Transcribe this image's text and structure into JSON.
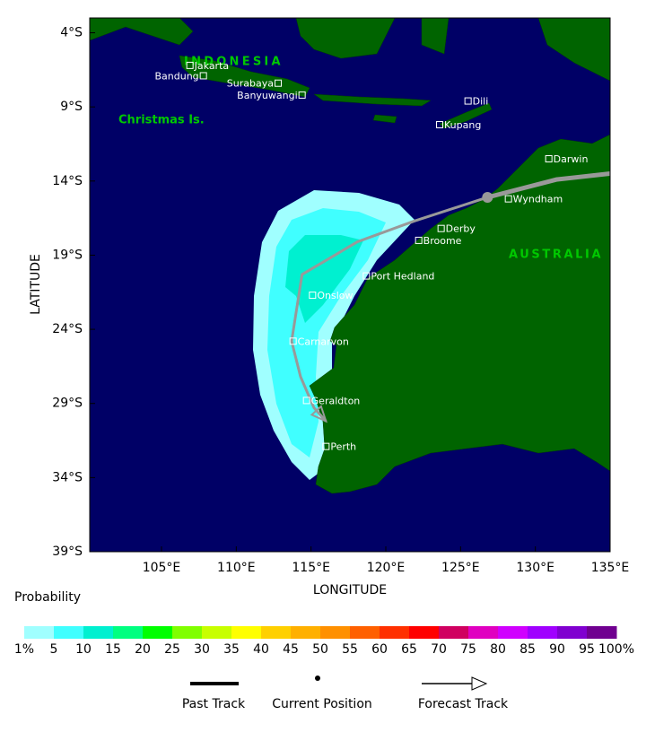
{
  "map": {
    "xaxis": {
      "label": "LONGITUDE",
      "lim": [
        100.2,
        135
      ],
      "ticks": [
        {
          "value": 105,
          "label": "105°E"
        },
        {
          "value": 110,
          "label": "110°E"
        },
        {
          "value": 115,
          "label": "115°E"
        },
        {
          "value": 120,
          "label": "120°E"
        },
        {
          "value": 125,
          "label": "125°E"
        },
        {
          "value": 130,
          "label": "130°E"
        },
        {
          "value": 135,
          "label": "135°E"
        }
      ]
    },
    "yaxis": {
      "label": "LATITUDE",
      "lim": [
        3,
        39
      ],
      "ticks": [
        {
          "value": 4,
          "label": "4°S"
        },
        {
          "value": 9,
          "label": "9°S"
        },
        {
          "value": 14,
          "label": "14°S"
        },
        {
          "value": 19,
          "label": "19°S"
        },
        {
          "value": 24,
          "label": "24°S"
        },
        {
          "value": 29,
          "label": "29°S"
        },
        {
          "value": 34,
          "label": "34°S"
        },
        {
          "value": 39,
          "label": "39°S"
        }
      ]
    },
    "regions": [
      "INDONESIA",
      "Christmas Is.",
      "AUSTRALIA"
    ],
    "places": [
      {
        "label": "Jakarta",
        "lon": 106.9,
        "lat": 6.2
      },
      {
        "label": "Bandung",
        "lon": 107.8,
        "lat": 6.9
      },
      {
        "label": "Surabaya",
        "lon": 112.8,
        "lat": 7.4
      },
      {
        "label": "Banyuwangi",
        "lon": 114.4,
        "lat": 8.2
      },
      {
        "label": "Kupang",
        "lon": 123.6,
        "lat": 10.2
      },
      {
        "label": "Dili",
        "lon": 125.5,
        "lat": 8.6
      },
      {
        "label": "Darwin",
        "lon": 130.9,
        "lat": 12.5
      },
      {
        "label": "Wyndham",
        "lon": 128.2,
        "lat": 15.2
      },
      {
        "label": "Derby",
        "lon": 123.7,
        "lat": 17.2
      },
      {
        "label": "Broome",
        "lon": 122.2,
        "lat": 18.0
      },
      {
        "label": "Port Hedland",
        "lon": 118.7,
        "lat": 20.4
      },
      {
        "label": "Onslow",
        "lon": 115.1,
        "lat": 21.7
      },
      {
        "label": "Carnarvon",
        "lon": 113.8,
        "lat": 24.8
      },
      {
        "label": "Geraldton",
        "lon": 114.7,
        "lat": 28.8
      },
      {
        "label": "Perth",
        "lon": 116.0,
        "lat": 31.9
      }
    ],
    "past_track": {
      "lon": [
        135,
        131.4,
        126.8
      ],
      "lat": [
        13.5,
        13.9,
        15.1
      ]
    },
    "current_position": {
      "lon": 126.8,
      "lat": 15.1
    },
    "forecast_track": {
      "lon": [
        126.8,
        121.9,
        118.1,
        114.4,
        113.7,
        114.3,
        115.2,
        116.0
      ],
      "lat": [
        15.1,
        16.7,
        18.1,
        20.3,
        24.8,
        27.2,
        29.3,
        30.2
      ]
    }
  },
  "legend": {
    "title": "Probability",
    "ticks": [
      {
        "value": 1,
        "label": "1%"
      },
      5,
      10,
      15,
      20,
      25,
      30,
      35,
      40,
      45,
      50,
      55,
      60,
      65,
      70,
      75,
      80,
      85,
      90,
      95,
      {
        "value": 100,
        "label": "100%"
      }
    ],
    "colors": [
      "#a0ffff",
      "#40ffff",
      "#00f0d0",
      "#00ff80",
      "#00ff00",
      "#80ff00",
      "#c8ff00",
      "#ffff00",
      "#ffd000",
      "#ffb000",
      "#ff9000",
      "#ff6000",
      "#ff3000",
      "#ff0000",
      "#d00060",
      "#e000c0",
      "#d000ff",
      "#a000ff",
      "#8000d0",
      "#700090"
    ],
    "items": [
      "Past Track",
      "Current Position",
      "Forecast Track"
    ]
  }
}
